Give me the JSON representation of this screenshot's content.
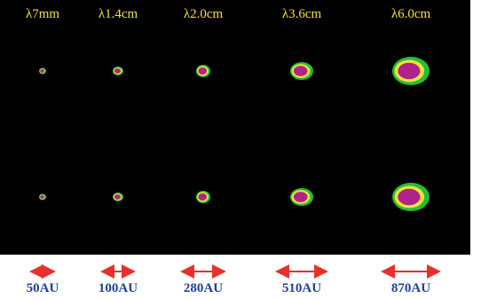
{
  "columns": [
    {
      "wavelength": "λ7mm",
      "scale": "50AU"
    },
    {
      "wavelength": "λ1.4cm",
      "scale": "100AU"
    },
    {
      "wavelength": "λ2.0cm",
      "scale": "280AU"
    },
    {
      "wavelength": "λ3.6cm",
      "scale": "510AU"
    },
    {
      "wavelength": "λ6.0cm",
      "scale": "870AU"
    }
  ]
}
